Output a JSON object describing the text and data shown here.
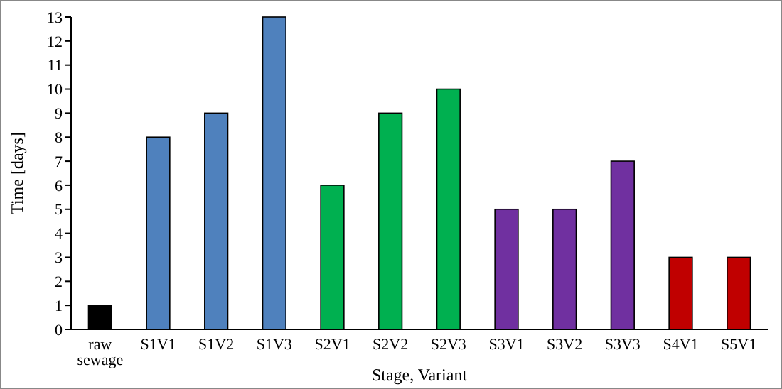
{
  "chart_data": {
    "type": "bar",
    "xlabel": "Stage, Variant",
    "ylabel": "Time [days]",
    "categories": [
      "raw sewage",
      "S1V1",
      "S1V2",
      "S1V3",
      "S2V1",
      "S2V2",
      "S2V3",
      "S3V1",
      "S3V2",
      "S3V3",
      "S4V1",
      "S5V1"
    ],
    "values": [
      1,
      8,
      9,
      13,
      6,
      9,
      10,
      5,
      5,
      7,
      3,
      3
    ],
    "colors": [
      "#000000",
      "#4f81bd",
      "#4f81bd",
      "#4f81bd",
      "#00b050",
      "#00b050",
      "#00b050",
      "#7030a0",
      "#7030a0",
      "#7030a0",
      "#c00000",
      "#c00000"
    ],
    "ylim": [
      0,
      13
    ],
    "yticks": [
      0,
      1,
      2,
      3,
      4,
      5,
      6,
      7,
      8,
      9,
      10,
      11,
      12,
      13
    ],
    "grid": false
  }
}
